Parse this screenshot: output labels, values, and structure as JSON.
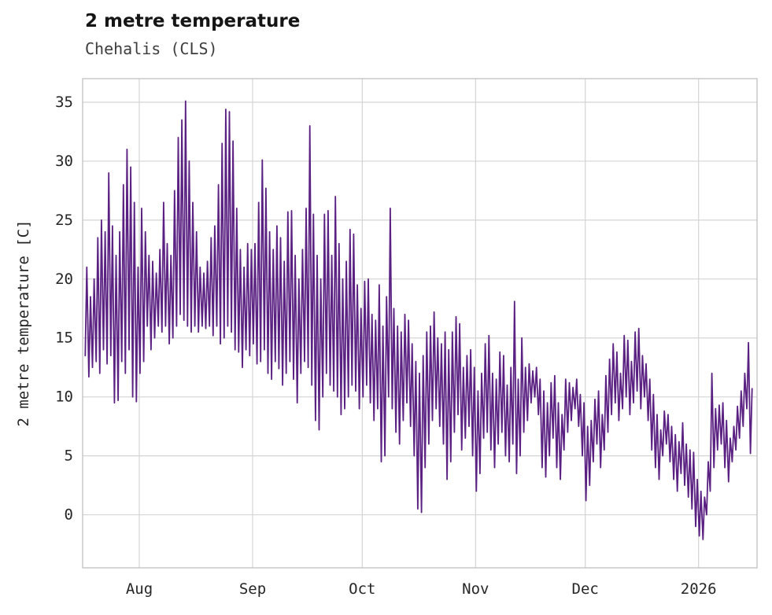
{
  "chart_data": {
    "type": "line",
    "title": "2 metre temperature",
    "subtitle": "Chehalis (CLS)",
    "xlabel": "",
    "ylabel": "2 metre temperature [C]",
    "legend": "none",
    "grid": "on",
    "line_color": "#5a2082",
    "grid_color": "#d4d4d4",
    "frame_color": "#c4c4c4",
    "tick_text_color": "#262626",
    "ylim": [
      -4.5,
      37
    ],
    "xlim_days": [
      -0.5,
      184
    ],
    "yticks": [
      0,
      5,
      10,
      15,
      20,
      25,
      30,
      35
    ],
    "xticks": [
      {
        "day": 15,
        "label": "Aug"
      },
      {
        "day": 46,
        "label": "Sep"
      },
      {
        "day": 76,
        "label": "Oct"
      },
      {
        "day": 107,
        "label": "Nov"
      },
      {
        "day": 137,
        "label": "Dec"
      },
      {
        "day": 168,
        "label": "2026"
      }
    ],
    "x_unit": "days from series start (mid-July) through mid-January 2026",
    "series_description": "hourly 2 m air temperature, shown here as daily [min,max] pairs",
    "daily_min_max": [
      [
        13.5,
        21
      ],
      [
        11.7,
        18.5
      ],
      [
        12.5,
        20
      ],
      [
        13,
        23.5
      ],
      [
        12,
        25
      ],
      [
        14,
        24
      ],
      [
        12.8,
        29
      ],
      [
        13.5,
        24.5
      ],
      [
        9.5,
        22
      ],
      [
        9.7,
        24
      ],
      [
        13,
        28
      ],
      [
        12,
        31
      ],
      [
        14,
        29.5
      ],
      [
        10,
        26.5
      ],
      [
        9.6,
        21
      ],
      [
        12,
        26
      ],
      [
        13,
        24
      ],
      [
        16,
        22
      ],
      [
        14,
        21.5
      ],
      [
        15,
        20.5
      ],
      [
        16,
        22.5
      ],
      [
        15.5,
        26.5
      ],
      [
        16,
        23
      ],
      [
        14.5,
        22
      ],
      [
        15,
        27.5
      ],
      [
        16,
        32
      ],
      [
        17,
        33.5
      ],
      [
        16.5,
        35.1
      ],
      [
        16,
        30
      ],
      [
        15.5,
        26.5
      ],
      [
        16,
        24
      ],
      [
        15.5,
        21
      ],
      [
        16,
        20.5
      ],
      [
        15.8,
        21.5
      ],
      [
        16,
        23.5
      ],
      [
        15.2,
        24.5
      ],
      [
        16,
        28
      ],
      [
        14.5,
        31.5
      ],
      [
        15,
        34.4
      ],
      [
        16,
        34.2
      ],
      [
        15.5,
        31.7
      ],
      [
        14,
        26
      ],
      [
        13.8,
        22.5
      ],
      [
        12.5,
        21
      ],
      [
        14,
        23
      ],
      [
        13.5,
        22.5
      ],
      [
        14.5,
        23
      ],
      [
        12.8,
        26.5
      ],
      [
        13,
        30.1
      ],
      [
        14,
        27.7
      ],
      [
        12,
        24
      ],
      [
        11.5,
        22.5
      ],
      [
        13,
        24.5
      ],
      [
        12.4,
        23.5
      ],
      [
        11,
        21.5
      ],
      [
        12,
        25.7
      ],
      [
        13,
        25.8
      ],
      [
        11.5,
        22
      ],
      [
        9.5,
        20
      ],
      [
        12,
        22.5
      ],
      [
        13,
        26
      ],
      [
        12.5,
        33
      ],
      [
        11,
        25.5
      ],
      [
        8,
        22
      ],
      [
        7.2,
        20
      ],
      [
        10,
        25.5
      ],
      [
        12,
        25.8
      ],
      [
        11,
        22
      ],
      [
        10.5,
        27
      ],
      [
        10,
        23
      ],
      [
        8.5,
        20
      ],
      [
        9,
        21.5
      ],
      [
        10,
        24.2
      ],
      [
        11,
        23.8
      ],
      [
        10.5,
        19.5
      ],
      [
        9,
        17.5
      ],
      [
        10,
        19.8
      ],
      [
        11,
        20
      ],
      [
        9.5,
        17
      ],
      [
        8,
        16.5
      ],
      [
        9,
        19.5
      ],
      [
        4.5,
        16
      ],
      [
        5,
        18.5
      ],
      [
        10,
        26
      ],
      [
        9,
        17.5
      ],
      [
        7,
        16
      ],
      [
        6,
        15.5
      ],
      [
        8,
        17
      ],
      [
        9.5,
        16.5
      ],
      [
        7.5,
        14.5
      ],
      [
        5,
        13
      ],
      [
        0.5,
        12
      ],
      [
        0.2,
        13.5
      ],
      [
        4,
        15.5
      ],
      [
        6,
        16
      ],
      [
        8,
        17.2
      ],
      [
        9,
        15
      ],
      [
        7.5,
        14.5
      ],
      [
        6,
        15.5
      ],
      [
        3,
        14
      ],
      [
        4.5,
        15.5
      ],
      [
        7,
        16.8
      ],
      [
        8.5,
        16.2
      ],
      [
        5.5,
        12.5
      ],
      [
        6.5,
        13.5
      ],
      [
        7.5,
        14
      ],
      [
        5,
        12.5
      ],
      [
        2,
        10.5
      ],
      [
        3.5,
        12
      ],
      [
        6.5,
        14.5
      ],
      [
        7,
        15.2
      ],
      [
        5.5,
        12
      ],
      [
        4,
        11.5
      ],
      [
        6,
        13.8
      ],
      [
        7,
        13.5
      ],
      [
        5,
        11
      ],
      [
        4.5,
        12.5
      ],
      [
        6,
        18.1
      ],
      [
        3.5,
        11.5
      ],
      [
        5,
        15
      ],
      [
        7,
        12.5
      ],
      [
        8,
        12.8
      ],
      [
        9.5,
        12.2
      ],
      [
        10,
        12.5
      ],
      [
        8.5,
        11.5
      ],
      [
        4,
        10.5
      ],
      [
        3.2,
        9.5
      ],
      [
        5,
        11.2
      ],
      [
        6.5,
        11.8
      ],
      [
        4,
        9.5
      ],
      [
        3,
        8.5
      ],
      [
        5.5,
        11.5
      ],
      [
        7,
        11.2
      ],
      [
        8,
        10.8
      ],
      [
        9,
        11.5
      ],
      [
        7.5,
        10.2
      ],
      [
        5,
        9.5
      ],
      [
        1.2,
        7.5
      ],
      [
        2.5,
        8
      ],
      [
        4.5,
        9.8
      ],
      [
        6,
        10.5
      ],
      [
        4,
        8.5
      ],
      [
        5.5,
        11.8
      ],
      [
        7,
        13.2
      ],
      [
        8.5,
        14.5
      ],
      [
        9.5,
        13.8
      ],
      [
        8,
        12
      ],
      [
        9,
        15.2
      ],
      [
        10,
        14.8
      ],
      [
        8.5,
        13
      ],
      [
        9.5,
        15.5
      ],
      [
        10.5,
        15.8
      ],
      [
        9,
        13.5
      ],
      [
        10,
        12.8
      ],
      [
        8,
        11.5
      ],
      [
        5.5,
        10.2
      ],
      [
        4,
        8.5
      ],
      [
        3,
        7.2
      ],
      [
        5,
        8.8
      ],
      [
        6,
        8.5
      ],
      [
        4.5,
        7.5
      ],
      [
        3,
        6.8
      ],
      [
        2,
        6.2
      ],
      [
        3.5,
        7.8
      ],
      [
        2.5,
        6
      ],
      [
        1.5,
        5.5
      ],
      [
        0.5,
        5.3
      ],
      [
        -1,
        3
      ],
      [
        -1.8,
        2
      ],
      [
        -2.1,
        1.5
      ],
      [
        0,
        4.5
      ],
      [
        2,
        12
      ],
      [
        4,
        9
      ],
      [
        5.5,
        9.3
      ],
      [
        6,
        9.5
      ],
      [
        4,
        8
      ],
      [
        2.8,
        6.5
      ],
      [
        4.5,
        7.5
      ],
      [
        5.5,
        9.2
      ],
      [
        6.5,
        10.5
      ],
      [
        7.5,
        12
      ],
      [
        9,
        14.6
      ],
      [
        5.2,
        10.7
      ]
    ]
  }
}
